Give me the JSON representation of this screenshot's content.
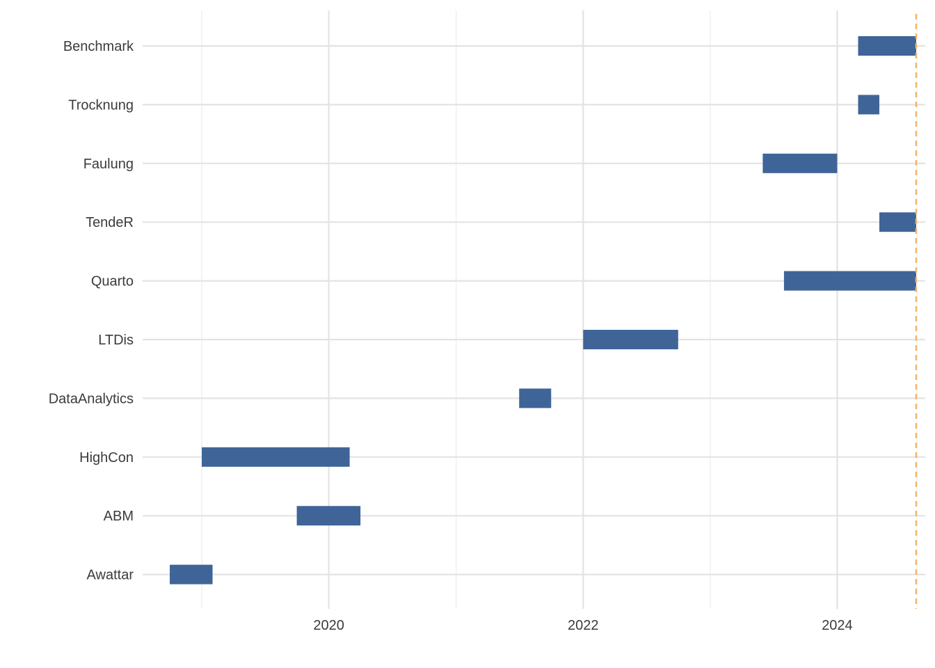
{
  "chart_data": {
    "type": "gantt",
    "title": "",
    "xlabel": "",
    "ylabel": "",
    "xlim": [
      "2018-07-15",
      "2024-09-10"
    ],
    "x_ticks": [
      {
        "date": "2020-01-01",
        "label": "2020"
      },
      {
        "date": "2022-01-01",
        "label": "2022"
      },
      {
        "date": "2024-01-01",
        "label": "2024"
      }
    ],
    "x_minor_gridlines": [
      "2019-01-01",
      "2021-01-01",
      "2023-01-01"
    ],
    "grid": true,
    "bar_color": "#3f6598",
    "reference_line": {
      "date": "2024-08-15",
      "color": "#f5b266",
      "style": "dashed"
    },
    "tasks": [
      {
        "name": "Benchmark",
        "start": "2024-03-01",
        "end": "2024-08-15"
      },
      {
        "name": "Trocknung",
        "start": "2024-03-01",
        "end": "2024-05-01"
      },
      {
        "name": "Faulung",
        "start": "2023-06-01",
        "end": "2024-01-01"
      },
      {
        "name": "TendeR",
        "start": "2024-05-01",
        "end": "2024-08-15"
      },
      {
        "name": "Quarto",
        "start": "2023-08-01",
        "end": "2024-08-15"
      },
      {
        "name": "LTDis",
        "start": "2022-01-01",
        "end": "2022-10-01"
      },
      {
        "name": "DataAnalytics",
        "start": "2021-07-01",
        "end": "2021-10-01"
      },
      {
        "name": "HighCon",
        "start": "2019-01-01",
        "end": "2020-03-01"
      },
      {
        "name": "ABM",
        "start": "2019-10-01",
        "end": "2020-04-01"
      },
      {
        "name": "Awattar",
        "start": "2018-10-01",
        "end": "2019-02-01"
      }
    ]
  }
}
